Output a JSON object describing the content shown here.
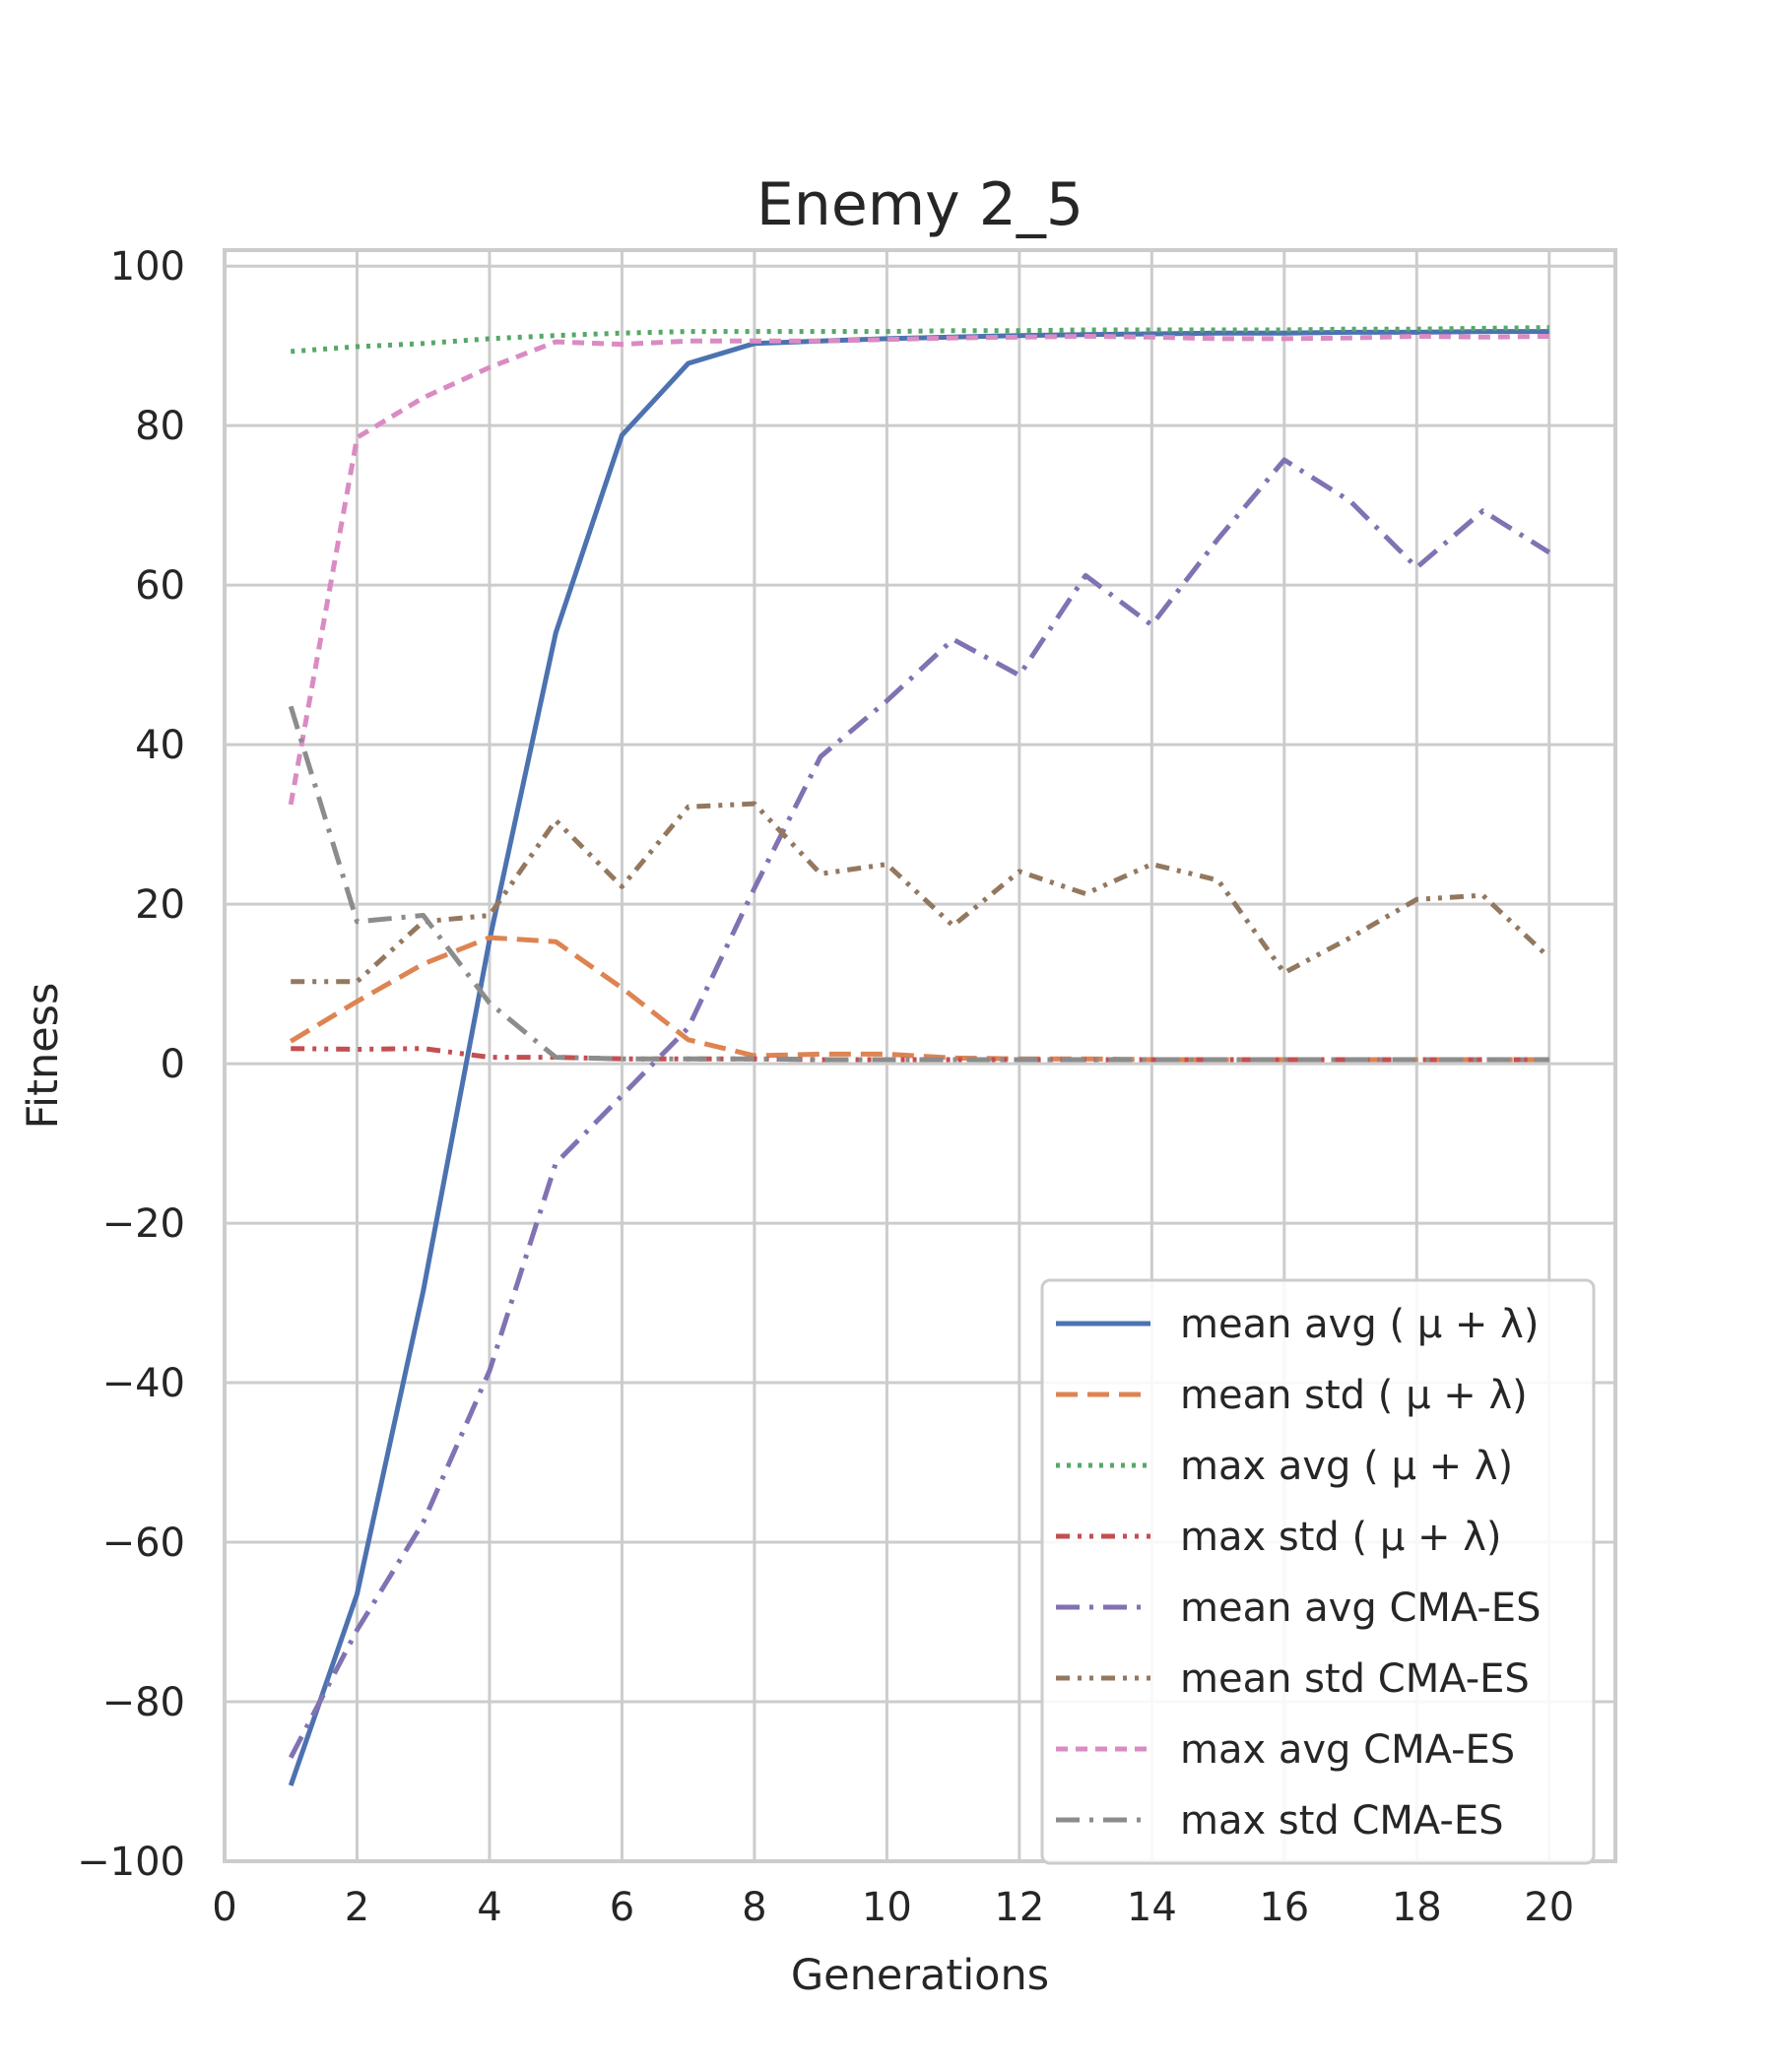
{
  "chart_data": {
    "type": "line",
    "title": "Enemy 2_5",
    "xlabel": "Generations",
    "ylabel": "Fitness",
    "xlim": [
      0,
      21
    ],
    "ylim": [
      -100,
      102
    ],
    "x_ticks": [
      0,
      2,
      4,
      6,
      8,
      10,
      12,
      14,
      16,
      18,
      20
    ],
    "y_ticks": [
      -100,
      -80,
      -60,
      -40,
      -20,
      0,
      20,
      40,
      60,
      80,
      100
    ],
    "grid": true,
    "legend_position": "lower-right",
    "x": [
      1,
      2,
      3,
      4,
      5,
      6,
      7,
      8,
      9,
      10,
      11,
      12,
      13,
      14,
      15,
      16,
      17,
      18,
      19,
      20
    ],
    "series": [
      {
        "name": "mean avg ( μ + λ)",
        "color": "#4c72b0",
        "style": "solid",
        "values": [
          -90.5,
          -66.5,
          -28.5,
          15.5,
          54,
          78.8,
          87.8,
          90.3,
          90.6,
          90.9,
          91.1,
          91.3,
          91.4,
          91.5,
          91.6,
          91.6,
          91.7,
          91.7,
          91.8,
          91.8
        ]
      },
      {
        "name": "mean std ( μ + λ)",
        "color": "#dd8452",
        "style": "dashed",
        "values": [
          2.8,
          7.8,
          12.5,
          15.8,
          15.3,
          9.5,
          3.0,
          1.0,
          1.2,
          1.2,
          0.7,
          0.6,
          0.6,
          0.5,
          0.5,
          0.5,
          0.5,
          0.5,
          0.5,
          0.5
        ]
      },
      {
        "name": "max avg ( μ + λ)",
        "color": "#55a868",
        "style": "dotted",
        "values": [
          89.3,
          89.9,
          90.3,
          90.9,
          91.3,
          91.6,
          91.8,
          91.8,
          91.8,
          91.8,
          91.9,
          91.9,
          92.0,
          92.0,
          92.0,
          92.0,
          92.1,
          92.1,
          92.2,
          92.3
        ]
      },
      {
        "name": "max std ( μ + λ)",
        "color": "#c44e52",
        "style": "dash-dot-dot",
        "values": [
          1.9,
          1.8,
          1.9,
          0.8,
          0.8,
          0.6,
          0.6,
          0.6,
          0.5,
          0.5,
          0.5,
          0.5,
          0.5,
          0.5,
          0.5,
          0.5,
          0.5,
          0.5,
          0.5,
          0.5
        ]
      },
      {
        "name": "mean avg CMA-ES",
        "color": "#8172b3",
        "style": "dash-dot",
        "values": [
          -87,
          -71,
          -57.5,
          -38.5,
          -12.5,
          -4,
          4.5,
          22,
          38.5,
          45.5,
          53.2,
          48.7,
          61.2,
          55,
          65.8,
          75.7,
          70.5,
          62.2,
          69.3,
          64.1
        ]
      },
      {
        "name": "mean std CMA-ES",
        "color": "#937860",
        "style": "dash-dot-dot",
        "values": [
          10.3,
          10.3,
          17.8,
          18.6,
          30.5,
          22.2,
          32.2,
          32.6,
          23.8,
          25,
          17.3,
          24.1,
          21.3,
          25,
          23,
          11.4,
          15.8,
          20.6,
          21.1,
          13.3
        ]
      },
      {
        "name": "max avg CMA-ES",
        "color": "#da8bc3",
        "style": "dashed-short",
        "values": [
          32.5,
          78.5,
          83.5,
          87.3,
          90.5,
          90.2,
          90.6,
          90.6,
          90.6,
          90.8,
          91.0,
          91.1,
          91.2,
          91.1,
          90.9,
          90.9,
          91.0,
          91.2,
          91.1,
          91.2
        ]
      },
      {
        "name": "max std CMA-ES",
        "color": "#8c8c8c",
        "style": "dash-dot",
        "values": [
          44.8,
          17.8,
          18.6,
          7.6,
          0.8,
          0.6,
          0.6,
          0.6,
          0.5,
          0.5,
          0.5,
          0.5,
          0.5,
          0.5,
          0.5,
          0.5,
          0.5,
          0.5,
          0.5,
          0.5
        ]
      }
    ]
  }
}
